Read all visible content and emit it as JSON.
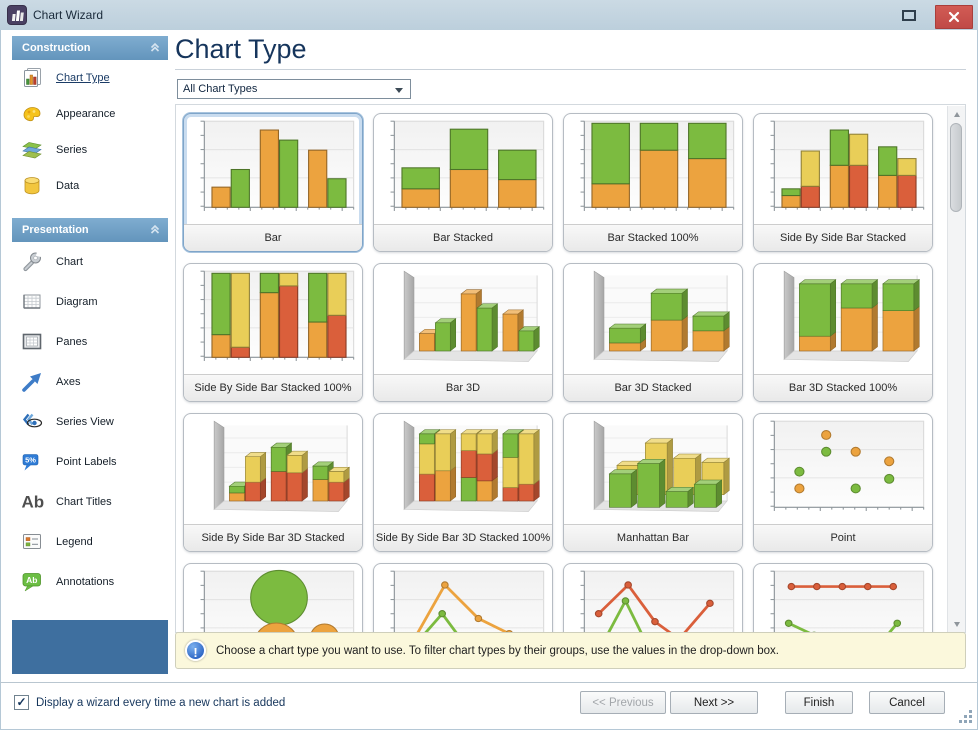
{
  "window": {
    "title": "Chart Wizard"
  },
  "sidebar": {
    "groups": [
      {
        "label": "Construction",
        "items": [
          {
            "label": "Chart Type",
            "icon": "chart-type-icon",
            "active": true
          },
          {
            "label": "Appearance",
            "icon": "appearance-icon",
            "active": false
          },
          {
            "label": "Series",
            "icon": "series-icon",
            "active": false
          },
          {
            "label": "Data",
            "icon": "data-icon",
            "active": false
          }
        ]
      },
      {
        "label": "Presentation",
        "items": [
          {
            "label": "Chart",
            "icon": "chart-icon",
            "active": false
          },
          {
            "label": "Diagram",
            "icon": "diagram-icon",
            "active": false
          },
          {
            "label": "Panes",
            "icon": "panes-icon",
            "active": false
          },
          {
            "label": "Axes",
            "icon": "axes-icon",
            "active": false
          },
          {
            "label": "Series View",
            "icon": "series-view-icon",
            "active": false
          },
          {
            "label": "Point Labels",
            "icon": "point-labels-icon",
            "active": false
          },
          {
            "label": "Chart Titles",
            "icon": "chart-titles-icon",
            "active": false
          },
          {
            "label": "Legend",
            "icon": "legend-icon",
            "active": false
          },
          {
            "label": "Annotations",
            "icon": "annotations-icon",
            "active": false
          }
        ]
      }
    ]
  },
  "main": {
    "heading": "Chart Type",
    "filter_value": "All Chart Types",
    "info": "Choose a chart type you want to use. To filter chart types by their groups, use the values in the drop-down box.",
    "cards": [
      {
        "label": "Bar",
        "selected": true,
        "thumb": {
          "type": "bar",
          "groups": [
            [
              [
                [
                  "o",
                  0.24
                ]
              ],
              [
                [
                  "g",
                  0.45
                ]
              ]
            ],
            [
              [
                [
                  "o",
                  0.92
                ]
              ],
              [
                [
                  "g",
                  0.8
                ]
              ]
            ],
            [
              [
                [
                  "o",
                  0.68
                ]
              ],
              [
                [
                  "g",
                  0.34
                ]
              ]
            ]
          ]
        }
      },
      {
        "label": "Bar Stacked",
        "selected": false,
        "thumb": {
          "type": "bar",
          "groups": [
            [
              [
                [
                  "o",
                  0.22
                ],
                [
                  "g",
                  0.25
                ]
              ]
            ],
            [
              [
                [
                  "o",
                  0.45
                ],
                [
                  "g",
                  0.48
                ]
              ]
            ],
            [
              [
                [
                  "o",
                  0.33
                ],
                [
                  "g",
                  0.35
                ]
              ]
            ]
          ]
        }
      },
      {
        "label": "Bar Stacked 100%",
        "selected": false,
        "thumb": {
          "type": "bar",
          "groups": [
            [
              [
                [
                  "o",
                  0.28
                ],
                [
                  "g",
                  0.72
                ]
              ]
            ],
            [
              [
                [
                  "o",
                  0.68
                ],
                [
                  "g",
                  0.32
                ]
              ]
            ],
            [
              [
                [
                  "o",
                  0.58
                ],
                [
                  "g",
                  0.42
                ]
              ]
            ]
          ]
        }
      },
      {
        "label": "Side By Side Bar Stacked",
        "selected": false,
        "thumb": {
          "type": "bar",
          "groups": [
            [
              [
                [
                  "o",
                  0.14
                ],
                [
                  "g",
                  0.08
                ]
              ],
              [
                [
                  "r",
                  0.25
                ],
                [
                  "y",
                  0.42
                ]
              ]
            ],
            [
              [
                [
                  "o",
                  0.5
                ],
                [
                  "g",
                  0.42
                ]
              ],
              [
                [
                  "r",
                  0.5
                ],
                [
                  "y",
                  0.37
                ]
              ]
            ],
            [
              [
                [
                  "o",
                  0.38
                ],
                [
                  "g",
                  0.34
                ]
              ],
              [
                [
                  "r",
                  0.38
                ],
                [
                  "y",
                  0.2
                ]
              ]
            ]
          ]
        }
      },
      {
        "label": "Side By Side Bar Stacked 100%",
        "selected": false,
        "thumb": {
          "type": "bar",
          "groups": [
            [
              [
                [
                  "o",
                  0.27
                ],
                [
                  "g",
                  0.73
                ]
              ],
              [
                [
                  "r",
                  0.12
                ],
                [
                  "y",
                  0.88
                ]
              ]
            ],
            [
              [
                [
                  "o",
                  0.77
                ],
                [
                  "g",
                  0.23
                ]
              ],
              [
                [
                  "r",
                  0.85
                ],
                [
                  "y",
                  0.15
                ]
              ]
            ],
            [
              [
                [
                  "o",
                  0.42
                ],
                [
                  "g",
                  0.58
                ]
              ],
              [
                [
                  "r",
                  0.5
                ],
                [
                  "y",
                  0.5
                ]
              ]
            ]
          ]
        }
      },
      {
        "label": "Bar 3D",
        "selected": false,
        "thumb": {
          "type": "bar3d",
          "groups": [
            [
              [
                [
                  "o",
                  0.26
                ]
              ],
              [
                [
                  "g",
                  0.42
                ]
              ]
            ],
            [
              [
                [
                  "o",
                  0.85
                ]
              ],
              [
                [
                  "g",
                  0.64
                ]
              ]
            ],
            [
              [
                [
                  "o",
                  0.55
                ]
              ],
              [
                [
                  "g",
                  0.3
                ]
              ]
            ]
          ]
        }
      },
      {
        "label": "Bar 3D Stacked",
        "selected": false,
        "thumb": {
          "type": "bar3d",
          "groups": [
            [
              [
                [
                  "o",
                  0.12
                ],
                [
                  "g",
                  0.22
                ]
              ]
            ],
            [
              [
                [
                  "o",
                  0.46
                ],
                [
                  "g",
                  0.4
                ]
              ]
            ],
            [
              [
                [
                  "o",
                  0.3
                ],
                [
                  "g",
                  0.22
                ]
              ]
            ]
          ]
        }
      },
      {
        "label": "Bar 3D Stacked 100%",
        "selected": false,
        "thumb": {
          "type": "bar3d",
          "groups": [
            [
              [
                [
                  "o",
                  0.22
                ],
                [
                  "g",
                  0.78
                ]
              ]
            ],
            [
              [
                [
                  "o",
                  0.64
                ],
                [
                  "g",
                  0.36
                ]
              ]
            ],
            [
              [
                [
                  "o",
                  0.6
                ],
                [
                  "g",
                  0.4
                ]
              ]
            ]
          ]
        }
      },
      {
        "label": "Side By Side Bar 3D Stacked",
        "selected": false,
        "thumb": {
          "type": "bar3d",
          "groups": [
            [
              [
                [
                  "o",
                  0.12
                ],
                [
                  "g",
                  0.1
                ]
              ],
              [
                [
                  "r",
                  0.28
                ],
                [
                  "y",
                  0.38
                ]
              ]
            ],
            [
              [
                [
                  "r",
                  0.44
                ],
                [
                  "g",
                  0.36
                ]
              ],
              [
                [
                  "r",
                  0.42
                ],
                [
                  "y",
                  0.26
                ]
              ]
            ],
            [
              [
                [
                  "o",
                  0.32
                ],
                [
                  "g",
                  0.2
                ]
              ],
              [
                [
                  "r",
                  0.28
                ],
                [
                  "y",
                  0.16
                ]
              ]
            ]
          ]
        }
      },
      {
        "label": "Side By Side Bar 3D Stacked 100%",
        "selected": false,
        "thumb": {
          "type": "bar3d",
          "groups": [
            [
              [
                [
                  "r",
                  0.4
                ],
                [
                  "y",
                  0.45
                ],
                [
                  "g",
                  0.15
                ]
              ],
              [
                [
                  "o",
                  0.45
                ],
                [
                  "y",
                  0.55
                ]
              ]
            ],
            [
              [
                [
                  "g",
                  0.35
                ],
                [
                  "r",
                  0.4
                ],
                [
                  "y",
                  0.25
                ]
              ],
              [
                [
                  "o",
                  0.3
                ],
                [
                  "r",
                  0.4
                ],
                [
                  "y",
                  0.3
                ]
              ]
            ],
            [
              [
                [
                  "r",
                  0.2
                ],
                [
                  "y",
                  0.45
                ],
                [
                  "g",
                  0.35
                ]
              ],
              [
                [
                  "r",
                  0.25
                ],
                [
                  "y",
                  0.75
                ]
              ]
            ]
          ]
        }
      },
      {
        "label": "Manhattan Bar",
        "selected": false,
        "thumb": {
          "type": "manhattan",
          "back": [
            0.5,
            0.88,
            0.62,
            0.55
          ],
          "front": [
            0.55,
            0.72,
            0.26,
            0.38
          ]
        }
      },
      {
        "label": "Point",
        "selected": false,
        "thumb": {
          "type": "point",
          "pts": [
            [
              "o",
              0.33,
              0.88
            ],
            [
              "o",
              0.55,
              0.67
            ],
            [
              "o",
              0.8,
              0.55
            ],
            [
              "o",
              0.13,
              0.21
            ],
            [
              "g",
              0.13,
              0.42
            ],
            [
              "g",
              0.33,
              0.67
            ],
            [
              "g",
              0.55,
              0.21
            ],
            [
              "g",
              0.8,
              0.33
            ]
          ]
        }
      },
      {
        "label": "",
        "selected": false,
        "thumb": {
          "type": "bubble",
          "bubbles": [
            [
              "o",
              0.05,
              0.1,
              9
            ],
            [
              "g",
              0.5,
              0.72,
              26
            ],
            [
              "o",
              0.48,
              0.14,
              20
            ],
            [
              "o",
              0.84,
              0.22,
              13
            ]
          ]
        }
      },
      {
        "label": "",
        "selected": false,
        "thumb": {
          "type": "line",
          "series": [
            {
              "c": "o",
              "pts": [
                [
                  0.03,
                  0.02
                ],
                [
                  0.32,
                  0.88
                ],
                [
                  0.57,
                  0.46
                ],
                [
                  0.8,
                  0.27
                ]
              ]
            },
            {
              "c": "g",
              "pts": [
                [
                  0.03,
                  0.0
                ],
                [
                  0.3,
                  0.52
                ],
                [
                  0.52,
                  0.02
                ]
              ]
            }
          ]
        }
      },
      {
        "label": "",
        "selected": false,
        "thumb": {
          "type": "line",
          "series": [
            {
              "c": "r",
              "pts": [
                [
                  0.05,
                  0.52
                ],
                [
                  0.27,
                  0.88
                ],
                [
                  0.47,
                  0.42
                ],
                [
                  0.65,
                  0.2
                ],
                [
                  0.88,
                  0.65
                ]
              ]
            },
            {
              "c": "g",
              "pts": [
                [
                  0.04,
                  0.02
                ],
                [
                  0.25,
                  0.68
                ],
                [
                  0.45,
                  0.0
                ]
              ]
            }
          ]
        }
      },
      {
        "label": "",
        "selected": false,
        "thumb": {
          "type": "line",
          "series": [
            {
              "c": "r",
              "pts": [
                [
                  0.07,
                  0.86
                ],
                [
                  0.26,
                  0.86
                ],
                [
                  0.45,
                  0.86
                ],
                [
                  0.64,
                  0.86
                ],
                [
                  0.83,
                  0.86
                ]
              ]
            },
            {
              "c": "g",
              "pts": [
                [
                  0.05,
                  0.4
                ],
                [
                  0.24,
                  0.25
                ],
                [
                  0.42,
                  0.02
                ],
                [
                  0.68,
                  0.04
                ],
                [
                  0.86,
                  0.4
                ]
              ]
            }
          ]
        }
      }
    ]
  },
  "footer": {
    "checkbox_label": "Display a wizard every time a new chart is added",
    "checkbox_checked": true,
    "buttons": [
      {
        "label": "<< Previous",
        "disabled": true
      },
      {
        "label": "Next >>",
        "disabled": false
      },
      {
        "label": "Finish",
        "disabled": false
      },
      {
        "label": "Cancel",
        "disabled": false
      }
    ]
  },
  "palette": {
    "orange": "#ECA33F",
    "green": "#7CBB40",
    "red": "#DA5F3B",
    "yellow": "#E9CE58",
    "header_blue": "#6FA3C8",
    "titlebar": "#C3D4DF",
    "close_red": "#CA524E",
    "sidebar_panel": "#3E6F9F",
    "info_bg": "#FBF8DC",
    "selection_blue": "#7FA5C9",
    "heading_text": "#16355C"
  }
}
